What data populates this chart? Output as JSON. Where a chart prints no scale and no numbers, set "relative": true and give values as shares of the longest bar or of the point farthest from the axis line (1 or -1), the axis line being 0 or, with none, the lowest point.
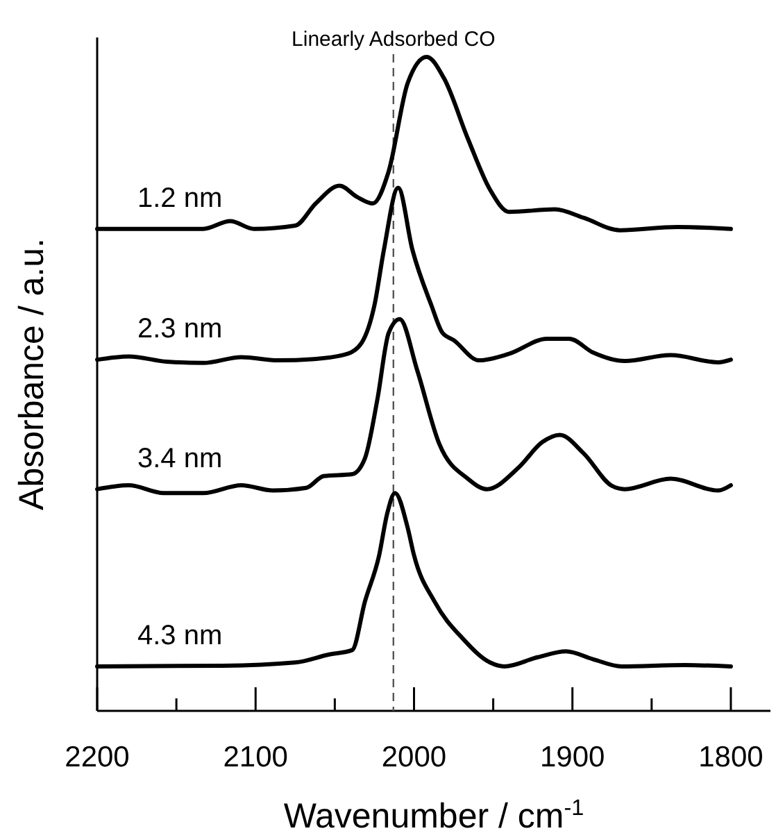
{
  "chart_data": {
    "type": "line",
    "relative": true,
    "xlabel": "Wavenumber / cm$^{-1}$",
    "ylabel": "Absorbance / a.u.",
    "xlim": [
      2200,
      1775
    ],
    "xticks": [
      2200,
      {
        "value": 2150,
        "label": null
      },
      2100,
      {
        "value": 2050,
        "label": null
      },
      2000,
      {
        "value": 1950,
        "label": null
      },
      1900,
      {
        "value": 1850,
        "label": null
      },
      1800
    ],
    "ref_lines": [
      {
        "axis": "x",
        "value": 2013,
        "label": "Linearly Adsorbed CO",
        "color": "#555555",
        "line_style": "dashed"
      }
    ],
    "legend": false,
    "grid": false,
    "marker": "none",
    "line_style": "solid",
    "series": [
      {
        "name": "1.2 nm",
        "color": "#000000",
        "x": [
          2200,
          2133,
          2116,
          2101,
          2075,
          2062,
          2047,
          2036,
          2026,
          2016,
          2004,
          1992,
          1981,
          1966,
          1952,
          1940,
          1911,
          1893,
          1870,
          1834,
          1800
        ],
        "values": [
          0.737,
          0.737,
          0.749,
          0.737,
          0.742,
          0.776,
          0.803,
          0.786,
          0.776,
          0.825,
          0.96,
          1.0,
          0.967,
          0.875,
          0.797,
          0.763,
          0.767,
          0.754,
          0.735,
          0.74,
          0.737
        ]
      },
      {
        "name": "2.3 nm",
        "color": "#000000",
        "x": [
          2200,
          2180,
          2156,
          2133,
          2109,
          2086,
          2063,
          2042,
          2033,
          2025,
          2019,
          2010,
          2001,
          1989,
          1982,
          1975,
          1959,
          1940,
          1916,
          1902,
          1887,
          1867,
          1838,
          1808,
          1800
        ],
        "values": [
          0.537,
          0.542,
          0.534,
          0.532,
          0.541,
          0.536,
          0.538,
          0.546,
          0.563,
          0.62,
          0.705,
          0.8,
          0.705,
          0.62,
          0.578,
          0.567,
          0.536,
          0.546,
          0.569,
          0.569,
          0.548,
          0.535,
          0.544,
          0.533,
          0.537
        ]
      },
      {
        "name": "3.4 nm",
        "color": "#000000",
        "x": [
          2200,
          2180,
          2158,
          2133,
          2109,
          2089,
          2068,
          2057,
          2039,
          2031,
          2023,
          2016,
          2009,
          1998,
          1984,
          1966,
          1954,
          1934,
          1919,
          1908,
          1893,
          1875,
          1867,
          1838,
          1808,
          1800
        ],
        "values": [
          0.339,
          0.345,
          0.333,
          0.333,
          0.345,
          0.337,
          0.341,
          0.359,
          0.362,
          0.386,
          0.478,
          0.578,
          0.599,
          0.521,
          0.408,
          0.355,
          0.339,
          0.372,
          0.411,
          0.422,
          0.394,
          0.344,
          0.339,
          0.355,
          0.337,
          0.345
        ]
      },
      {
        "name": "4.3 nm",
        "color": "#000000",
        "x": [
          2200,
          2121,
          2075,
          2054,
          2039,
          2031,
          2022,
          2017,
          2012,
          2004,
          2000,
          1987,
          1969,
          1952,
          1943,
          1922,
          1904,
          1887,
          1869,
          1829,
          1800
        ],
        "values": [
          0.068,
          0.069,
          0.074,
          0.086,
          0.093,
          0.167,
          0.238,
          0.301,
          0.333,
          0.28,
          0.238,
          0.167,
          0.11,
          0.074,
          0.068,
          0.082,
          0.091,
          0.079,
          0.068,
          0.07,
          0.068
        ]
      }
    ]
  }
}
